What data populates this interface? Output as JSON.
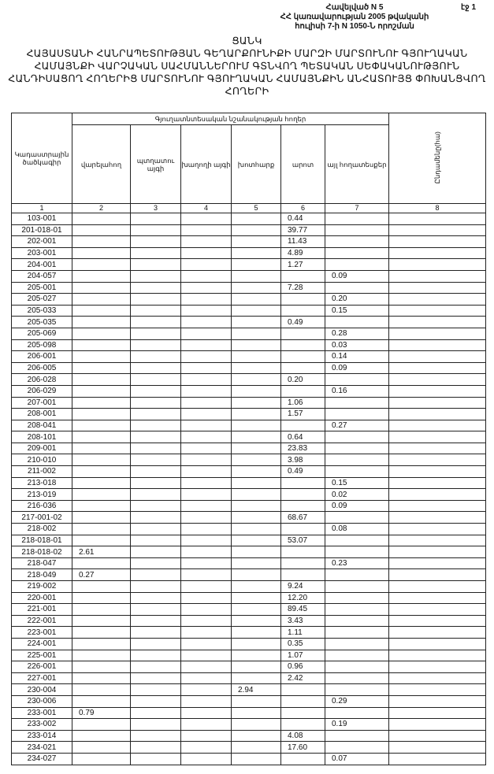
{
  "header": {
    "annex": "Հավելված N 5",
    "page": "էջ 1",
    "line2": "ՀՀ կառավարության 2005 թվականի",
    "line3": "հուլիսի 7-ի N 1050-Ն որոշման"
  },
  "title": {
    "heading": "ՑԱՆԿ",
    "line1": "ՀԱՅԱՍՏԱՆԻ ՀԱՆՐԱՊԵՏՈՒԹՅԱՆ ԳԵՂԱՐՔՈՒՆԻՔԻ ՄԱՐԶԻ ՄԱՐՏՈՒՆՈՒ ԳՅՈՒՂԱԿԱՆ",
    "line2": "ՀԱՄԱՅՆՔԻ ՎԱՐՉԱԿԱՆ ՍԱՀՄԱՆՆԵՐՈՒՄ ԳՏՆՎՈՂ ՊԵՏԱԿԱՆ ՍԵՓԱԿԱՆՈՒԹՅՈՒՆ",
    "line3": "ՀԱՆԴԻՍԱՑՈՂ ՀՈՂԵՐԻՑ ՄԱՐՏՈՒՆՈՒ ԳՅՈՒՂԱԿԱՆ ՀԱՄԱՅՆՔԻՆ ԱՆՀԱՏՈՒՅՑ ՓՈԽԱՆՑՎՈՂ",
    "line4": "ՀՈՂԵՐԻ"
  },
  "table": {
    "col_code": "Կադաստրային ծածկագիր",
    "group": "Գյուղատնտեսական նշանակության հողեր",
    "cols": [
      "վարելահող",
      "պտղատու այգի",
      "խաղողի այգի",
      "խոտհարք",
      "արոտ",
      "այլ հողատեսքեր"
    ],
    "col_total": "Ընդամենը(հա)",
    "numbers": [
      "1",
      "2",
      "3",
      "4",
      "5",
      "6",
      "7",
      "8"
    ],
    "rows": [
      [
        "103-001",
        "",
        "",
        "",
        "",
        "0.44",
        "",
        ""
      ],
      [
        "201-018-01",
        "",
        "",
        "",
        "",
        "39.77",
        "",
        ""
      ],
      [
        "202-001",
        "",
        "",
        "",
        "",
        "11.43",
        "",
        ""
      ],
      [
        "203-001",
        "",
        "",
        "",
        "",
        "4.89",
        "",
        ""
      ],
      [
        "204-001",
        "",
        "",
        "",
        "",
        "1.27",
        "",
        ""
      ],
      [
        "204-057",
        "",
        "",
        "",
        "",
        "",
        "0.09",
        ""
      ],
      [
        "205-001",
        "",
        "",
        "",
        "",
        "7.28",
        "",
        ""
      ],
      [
        "205-027",
        "",
        "",
        "",
        "",
        "",
        "0.20",
        ""
      ],
      [
        "205-033",
        "",
        "",
        "",
        "",
        "",
        "0.15",
        ""
      ],
      [
        "205-035",
        "",
        "",
        "",
        "",
        "0.49",
        "",
        ""
      ],
      [
        "205-069",
        "",
        "",
        "",
        "",
        "",
        "0.28",
        ""
      ],
      [
        "205-098",
        "",
        "",
        "",
        "",
        "",
        "0.03",
        ""
      ],
      [
        "206-001",
        "",
        "",
        "",
        "",
        "",
        "0.14",
        ""
      ],
      [
        "206-005",
        "",
        "",
        "",
        "",
        "",
        "0.09",
        ""
      ],
      [
        "206-028",
        "",
        "",
        "",
        "",
        "0.20",
        "",
        ""
      ],
      [
        "206-029",
        "",
        "",
        "",
        "",
        "",
        "0.16",
        ""
      ],
      [
        "207-001",
        "",
        "",
        "",
        "",
        "1.06",
        "",
        ""
      ],
      [
        "208-001",
        "",
        "",
        "",
        "",
        "1.57",
        "",
        ""
      ],
      [
        "208-041",
        "",
        "",
        "",
        "",
        "",
        "0.27",
        ""
      ],
      [
        "208-101",
        "",
        "",
        "",
        "",
        "0.64",
        "",
        ""
      ],
      [
        "209-001",
        "",
        "",
        "",
        "",
        "23.83",
        "",
        ""
      ],
      [
        "210-010",
        "",
        "",
        "",
        "",
        "3.98",
        "",
        ""
      ],
      [
        "211-002",
        "",
        "",
        "",
        "",
        "0.49",
        "",
        ""
      ],
      [
        "213-018",
        "",
        "",
        "",
        "",
        "",
        "0.15",
        ""
      ],
      [
        "213-019",
        "",
        "",
        "",
        "",
        "",
        "0.02",
        ""
      ],
      [
        "216-036",
        "",
        "",
        "",
        "",
        "",
        "0.09",
        ""
      ],
      [
        "217-001-02",
        "",
        "",
        "",
        "",
        "68.67",
        "",
        ""
      ],
      [
        "218-002",
        "",
        "",
        "",
        "",
        "",
        "0.08",
        ""
      ],
      [
        "218-018-01",
        "",
        "",
        "",
        "",
        "53.07",
        "",
        ""
      ],
      [
        "218-018-02",
        "2.61",
        "",
        "",
        "",
        "",
        "",
        ""
      ],
      [
        "218-047",
        "",
        "",
        "",
        "",
        "",
        "0.23",
        ""
      ],
      [
        "218-049",
        "0.27",
        "",
        "",
        "",
        "",
        "",
        ""
      ],
      [
        "219-002",
        "",
        "",
        "",
        "",
        "9.24",
        "",
        ""
      ],
      [
        "220-001",
        "",
        "",
        "",
        "",
        "12.20",
        "",
        ""
      ],
      [
        "221-001",
        "",
        "",
        "",
        "",
        "89.45",
        "",
        ""
      ],
      [
        "222-001",
        "",
        "",
        "",
        "",
        "3.43",
        "",
        ""
      ],
      [
        "223-001",
        "",
        "",
        "",
        "",
        "1.11",
        "",
        ""
      ],
      [
        "224-001",
        "",
        "",
        "",
        "",
        "0.35",
        "",
        ""
      ],
      [
        "225-001",
        "",
        "",
        "",
        "",
        "1.07",
        "",
        ""
      ],
      [
        "226-001",
        "",
        "",
        "",
        "",
        "0.96",
        "",
        ""
      ],
      [
        "227-001",
        "",
        "",
        "",
        "",
        "2.42",
        "",
        ""
      ],
      [
        "230-004",
        "",
        "",
        "",
        "2.94",
        "",
        "",
        ""
      ],
      [
        "230-006",
        "",
        "",
        "",
        "",
        "",
        "0.29",
        ""
      ],
      [
        "233-001",
        "0.79",
        "",
        "",
        "",
        "",
        "",
        ""
      ],
      [
        "233-002",
        "",
        "",
        "",
        "",
        "",
        "0.19",
        ""
      ],
      [
        "233-014",
        "",
        "",
        "",
        "",
        "4.08",
        "",
        ""
      ],
      [
        "234-021",
        "",
        "",
        "",
        "",
        "17.60",
        "",
        ""
      ],
      [
        "234-027",
        "",
        "",
        "",
        "",
        "",
        "0.07",
        ""
      ]
    ]
  }
}
